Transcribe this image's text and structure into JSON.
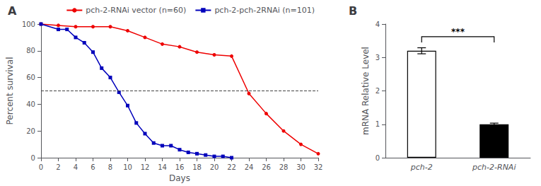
{
  "chart_data": [
    {
      "type": "line",
      "title": "A",
      "xlabel": "Days",
      "ylabel": "Percent survival",
      "series": [
        {
          "name": "pch-2-RNAi vector (n=60)",
          "color": "#EE0000",
          "marker": "circle",
          "x": [
            0,
            2,
            4,
            6,
            8,
            10,
            12,
            14,
            16,
            18,
            20,
            22,
            24,
            26,
            28,
            30,
            32
          ],
          "values": [
            100,
            99,
            98,
            98,
            98,
            95,
            90,
            85,
            83,
            79,
            77,
            76,
            48,
            33,
            20,
            10,
            3
          ]
        },
        {
          "name": "pch-2-pch-2RNAi (n=101)",
          "color": "#0000BB",
          "marker": "square",
          "x": [
            0,
            2,
            3,
            4,
            5,
            6,
            7,
            8,
            9,
            10,
            11,
            12,
            13,
            14,
            15,
            16,
            17,
            18,
            19,
            20,
            21,
            22
          ],
          "values": [
            100,
            96,
            96,
            90,
            86,
            79,
            67,
            60,
            49,
            39,
            26,
            18,
            11,
            9,
            9,
            6,
            4,
            3,
            2,
            1,
            1,
            0
          ]
        }
      ],
      "reference_lines": [
        {
          "y": 50,
          "line_style": "dashed",
          "color": "#444444"
        }
      ],
      "xlim": [
        0,
        32
      ],
      "ylim": [
        0,
        100
      ],
      "xticks": [
        0,
        2,
        4,
        6,
        8,
        10,
        12,
        14,
        16,
        18,
        20,
        22,
        24,
        26,
        28,
        30,
        32
      ],
      "yticks": [
        0,
        20,
        40,
        60,
        80,
        100
      ],
      "legend": "upper right",
      "grid": false
    },
    {
      "type": "bar",
      "title": "B",
      "ylabel": "mRNA Relative Level",
      "categories": [
        "pch-2",
        "pch-2-RNAi"
      ],
      "values": [
        3.2,
        1.0
      ],
      "errors": [
        0.09,
        0.035
      ],
      "colors": [
        "#FFFFFF",
        "#000000"
      ],
      "edge_color": "#000000",
      "ylim": [
        0,
        4
      ],
      "yticks": [
        0,
        1,
        2,
        3,
        4
      ],
      "annotations": [
        {
          "text": "***",
          "from": "pch-2",
          "to": "pch-2-RNAi",
          "y": 3.62
        }
      ],
      "grid": false
    }
  ]
}
